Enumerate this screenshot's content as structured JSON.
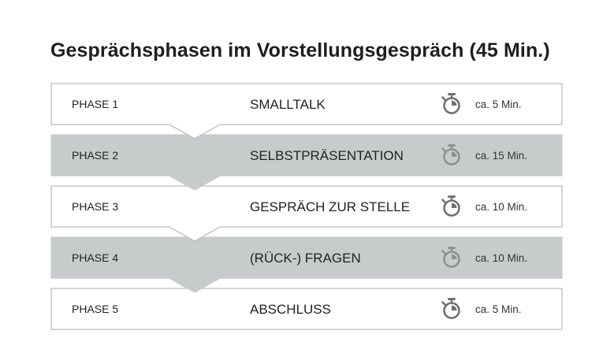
{
  "title": "Gesprächsphasen im Vorstellungsgespräch (45 Min.)",
  "colors": {
    "shaded_fill": "#c8cbcc",
    "white_fill": "#ffffff",
    "border": "#b9bcbe",
    "icon_light_bg": "#6f7173",
    "icon_dark_bg": "#8e9092"
  },
  "phases": [
    {
      "phase": "PHASE 1",
      "name": "SMALLTALK",
      "duration": "ca. 5 Min.",
      "minutes": 5,
      "shaded": false,
      "icon": "stopwatch-icon"
    },
    {
      "phase": "PHASE 2",
      "name": "SELBSTPRÄSENTATION",
      "duration": "ca. 15 Min.",
      "minutes": 15,
      "shaded": true,
      "icon": "stopwatch-icon"
    },
    {
      "phase": "PHASE 3",
      "name": "GESPRÄCH ZUR STELLE",
      "duration": "ca. 10 Min.",
      "minutes": 10,
      "shaded": false,
      "icon": "stopwatch-icon"
    },
    {
      "phase": "PHASE 4",
      "name": "(RÜCK-) FRAGEN",
      "duration": "ca. 10 Min.",
      "minutes": 10,
      "shaded": true,
      "icon": "stopwatch-icon"
    },
    {
      "phase": "PHASE 5",
      "name": "ABSCHLUSS",
      "duration": "ca. 5 Min.",
      "minutes": 5,
      "shaded": false,
      "icon": "stopwatch-icon"
    }
  ]
}
